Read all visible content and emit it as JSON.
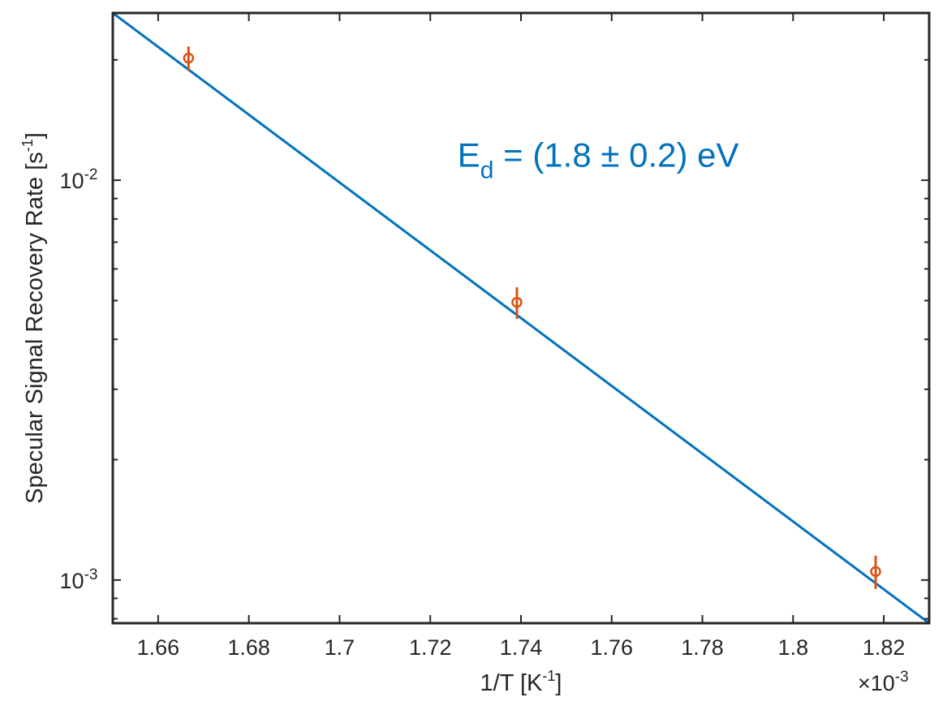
{
  "colors": {
    "fit_line": "#0072BD",
    "data_points": "#D95319",
    "axes": "#262626",
    "annotation": "#0072BD"
  },
  "chart_data": {
    "type": "scatter",
    "title": "",
    "xlabel_main": "1/T [K",
    "xlabel_sup": "-1",
    "xlabel_end": "]",
    "ylabel_main": "Specular Signal Recovery Rate [s",
    "ylabel_sup": "-1",
    "ylabel_end": "]",
    "x_multiplier": {
      "prefix": "×10",
      "exponent": "-3"
    },
    "xlim": [
      0.00165,
      0.00183
    ],
    "ylim": [
      0.00078,
      0.0262
    ],
    "yscale": "log",
    "x_ticks": [
      {
        "value": 0.00166,
        "label": "1.66"
      },
      {
        "value": 0.00168,
        "label": "1.68"
      },
      {
        "value": 0.0017,
        "label": "1.7"
      },
      {
        "value": 0.00172,
        "label": "1.72"
      },
      {
        "value": 0.00174,
        "label": "1.74"
      },
      {
        "value": 0.00176,
        "label": "1.76"
      },
      {
        "value": 0.00178,
        "label": "1.78"
      },
      {
        "value": 0.0018,
        "label": "1.8"
      },
      {
        "value": 0.00182,
        "label": "1.82"
      }
    ],
    "y_ticks": [
      {
        "value": 0.001,
        "base": "10",
        "exp": "-3"
      },
      {
        "value": 0.01,
        "base": "10",
        "exp": "-2"
      }
    ],
    "series": [
      {
        "type": "scatter",
        "points": [
          {
            "x": 0.0016667,
            "y": 0.0202,
            "err": 0.0014
          },
          {
            "x": 0.0017391,
            "y": 0.00495,
            "err": 0.00045
          },
          {
            "x": 0.0018182,
            "y": 0.00105,
            "err": 0.0001
          }
        ]
      },
      {
        "type": "line",
        "points": [
          {
            "x": 0.00165,
            "y": 0.0262
          },
          {
            "x": 0.00183,
            "y": 0.00078
          }
        ]
      }
    ],
    "annotation": {
      "main": "E",
      "sub": "d",
      "rest": " = (1.8 ± 0.2) eV",
      "x": 0.001726,
      "y": 0.0108
    },
    "grid": false,
    "box": true
  }
}
